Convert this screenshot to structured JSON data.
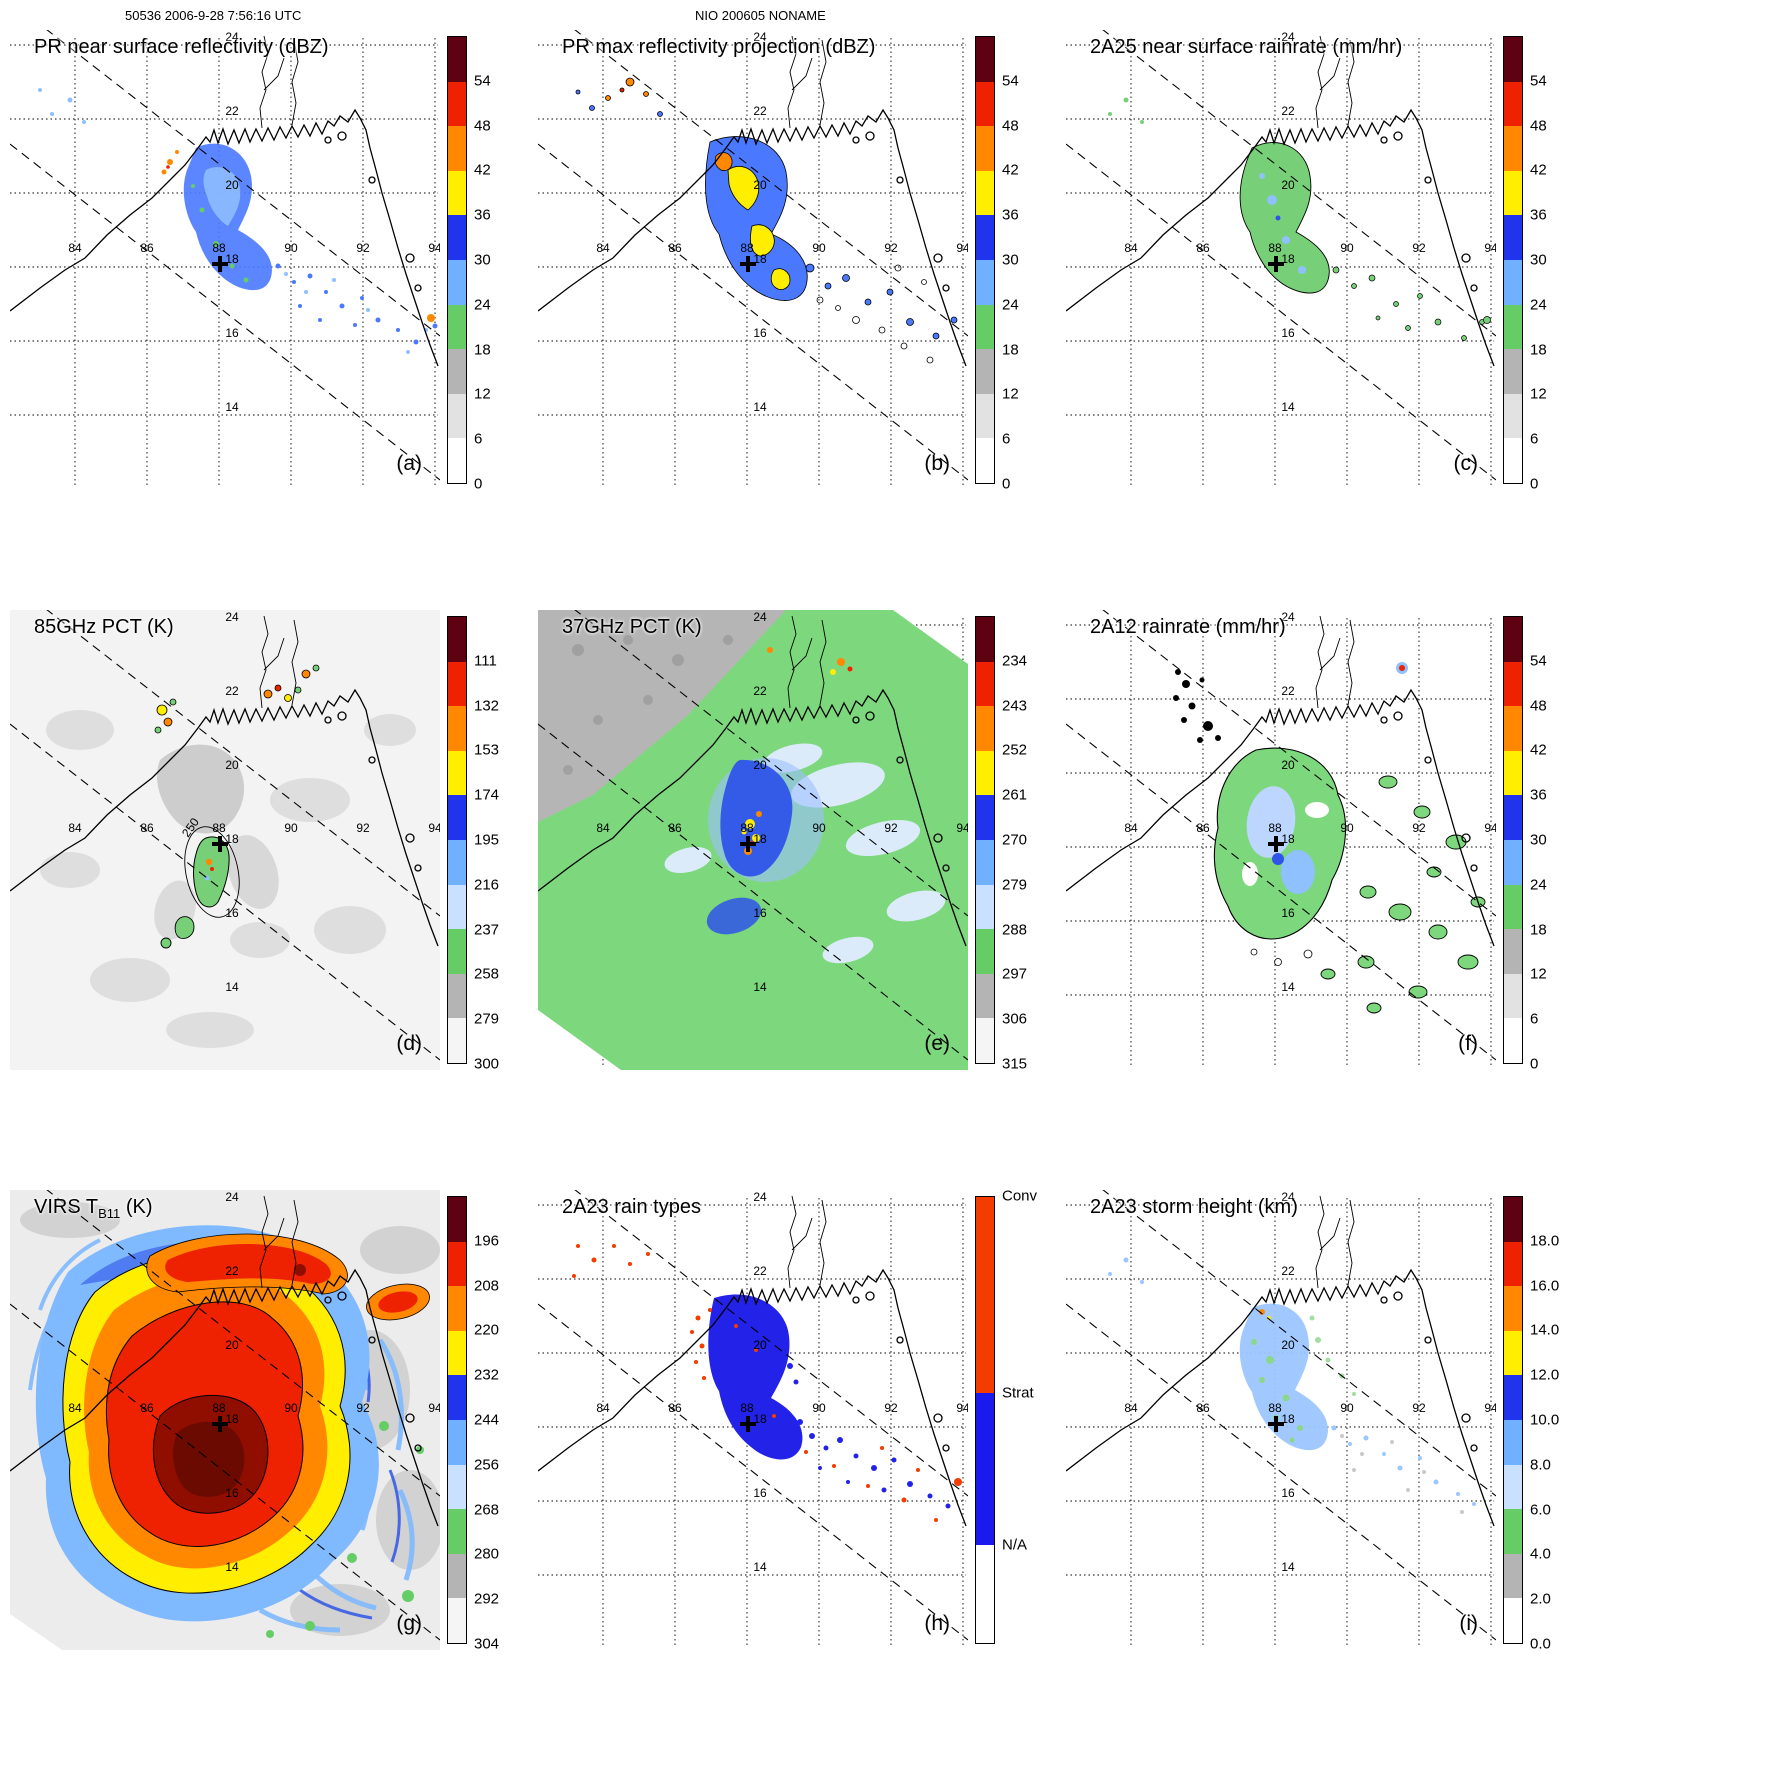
{
  "header": {
    "left": "50536 2006-9-28 7:56:16 UTC",
    "center": "NIO 200605 NONAME"
  },
  "axes": {
    "lon_labels": [
      "84",
      "86",
      "88",
      "90",
      "92",
      "94"
    ],
    "lat_labels": [
      "24",
      "22",
      "20",
      "18",
      "16",
      "14"
    ]
  },
  "palettes": {
    "dbz": [
      "#5e0211",
      "#ee2200",
      "#ff8800",
      "#ffee00",
      "#2233ee",
      "#6fb1ff",
      "#66cc66",
      "#b4b4b4",
      "#e2e2e2",
      "#ffffff"
    ],
    "pct": [
      "#5e0211",
      "#ee2200",
      "#ff8800",
      "#ffee00",
      "#2233ee",
      "#6fb1ff",
      "#c9e0ff",
      "#66cc66",
      "#b4b4b4",
      "#f5f5f5"
    ],
    "height": [
      "#5e0211",
      "#ee2200",
      "#ff8800",
      "#ffee00",
      "#2233ee",
      "#6fb1ff",
      "#c9e0ff",
      "#66cc66",
      "#b4b4b4",
      "#ffffff"
    ]
  },
  "panels": [
    {
      "id": "a",
      "letter": "(a)",
      "title": "PR near surface reflectivity (dBZ)",
      "colorbar": {
        "kind": "scale",
        "palette": "dbz",
        "ticks": [
          "54",
          "48",
          "42",
          "36",
          "30",
          "24",
          "18",
          "12",
          "6",
          "0"
        ]
      }
    },
    {
      "id": "b",
      "letter": "(b)",
      "title": "PR max reflectivity projection (dBZ)",
      "colorbar": {
        "kind": "scale",
        "palette": "dbz",
        "ticks": [
          "54",
          "48",
          "42",
          "36",
          "30",
          "24",
          "18",
          "12",
          "6",
          "0"
        ]
      }
    },
    {
      "id": "c",
      "letter": "(c)",
      "title": "2A25 near surface rainrate (mm/hr)",
      "colorbar": {
        "kind": "scale",
        "palette": "dbz",
        "ticks": [
          "54",
          "48",
          "42",
          "36",
          "30",
          "24",
          "18",
          "12",
          "6",
          "0"
        ]
      }
    },
    {
      "id": "d",
      "letter": "(d)",
      "title": "85GHz PCT (K)",
      "map_label": "250",
      "colorbar": {
        "kind": "scale",
        "palette": "pct",
        "ticks": [
          "111",
          "132",
          "153",
          "174",
          "195",
          "216",
          "237",
          "258",
          "279",
          "300"
        ]
      }
    },
    {
      "id": "e",
      "letter": "(e)",
      "title": "37GHz PCT (K)",
      "colorbar": {
        "kind": "scale",
        "palette": "pct",
        "ticks": [
          "234",
          "243",
          "252",
          "261",
          "270",
          "279",
          "288",
          "297",
          "306",
          "315"
        ]
      }
    },
    {
      "id": "f",
      "letter": "(f)",
      "title": "2A12 rainrate (mm/hr)",
      "colorbar": {
        "kind": "scale",
        "palette": "dbz",
        "ticks": [
          "54",
          "48",
          "42",
          "36",
          "30",
          "24",
          "18",
          "12",
          "6",
          "0"
        ]
      }
    },
    {
      "id": "g",
      "letter": "(g)",
      "title": "VIRS T",
      "title_sub": "B11",
      "title_post": " (K)",
      "colorbar": {
        "kind": "scale",
        "palette": "pct",
        "ticks": [
          "196",
          "208",
          "220",
          "232",
          "244",
          "256",
          "268",
          "280",
          "292",
          "304"
        ]
      }
    },
    {
      "id": "h",
      "letter": "(h)",
      "title": "2A23 rain types",
      "colorbar": {
        "kind": "cats",
        "segments": [
          {
            "label": "Conv",
            "color": "#f43b00",
            "frac": 0.44
          },
          {
            "label": "Strat",
            "color": "#1a1aee",
            "frac": 0.34
          },
          {
            "label": "N/A",
            "color": "#ffffff",
            "frac": 0.22
          }
        ]
      }
    },
    {
      "id": "i",
      "letter": "(i)",
      "title": "2A23 storm height (km)",
      "colorbar": {
        "kind": "scale",
        "palette": "height",
        "ticks": [
          "18.0",
          "16.0",
          "14.0",
          "12.0",
          "10.0",
          "8.0",
          "6.0",
          "4.0",
          "2.0",
          "0.0"
        ]
      }
    }
  ],
  "chart_data": [
    {
      "type": "heatmap",
      "panel": "(a)",
      "title": "PR near surface reflectivity (dBZ)",
      "units": "dBZ",
      "colorbar_ticks": [
        0,
        6,
        12,
        18,
        24,
        30,
        36,
        42,
        48,
        54
      ],
      "lon_ticks": [
        84,
        86,
        88,
        90,
        92,
        94
      ],
      "lat_ticks": [
        14,
        16,
        18,
        20,
        22,
        24
      ],
      "storm_center_lon_lat": [
        88.3,
        18.1
      ]
    },
    {
      "type": "heatmap",
      "panel": "(b)",
      "title": "PR max reflectivity projection (dBZ)",
      "units": "dBZ",
      "colorbar_ticks": [
        0,
        6,
        12,
        18,
        24,
        30,
        36,
        42,
        48,
        54
      ],
      "lon_ticks": [
        84,
        86,
        88,
        90,
        92,
        94
      ],
      "lat_ticks": [
        14,
        16,
        18,
        20,
        22,
        24
      ],
      "storm_center_lon_lat": [
        88.3,
        18.1
      ]
    },
    {
      "type": "heatmap",
      "panel": "(c)",
      "title": "2A25 near surface rainrate (mm/hr)",
      "units": "mm/hr",
      "colorbar_ticks": [
        0,
        6,
        12,
        18,
        24,
        30,
        36,
        42,
        48,
        54
      ],
      "lon_ticks": [
        84,
        86,
        88,
        90,
        92,
        94
      ],
      "lat_ticks": [
        14,
        16,
        18,
        20,
        22,
        24
      ],
      "storm_center_lon_lat": [
        88.3,
        18.1
      ]
    },
    {
      "type": "heatmap",
      "panel": "(d)",
      "title": "85GHz PCT (K)",
      "units": "K",
      "colorbar_ticks": [
        111,
        132,
        153,
        174,
        195,
        216,
        237,
        258,
        279,
        300
      ],
      "contour_label": 250,
      "lon_ticks": [
        84,
        86,
        88,
        90,
        92,
        94
      ],
      "lat_ticks": [
        14,
        16,
        18,
        20,
        22,
        24
      ],
      "storm_center_lon_lat": [
        88.3,
        18.1
      ]
    },
    {
      "type": "heatmap",
      "panel": "(e)",
      "title": "37GHz PCT (K)",
      "units": "K",
      "colorbar_ticks": [
        234,
        243,
        252,
        261,
        270,
        279,
        288,
        297,
        306,
        315
      ],
      "lon_ticks": [
        84,
        86,
        88,
        90,
        92,
        94
      ],
      "lat_ticks": [
        14,
        16,
        18,
        20,
        22,
        24
      ],
      "storm_center_lon_lat": [
        88.3,
        18.1
      ]
    },
    {
      "type": "heatmap",
      "panel": "(f)",
      "title": "2A12 rainrate (mm/hr)",
      "units": "mm/hr",
      "colorbar_ticks": [
        0,
        6,
        12,
        18,
        24,
        30,
        36,
        42,
        48,
        54
      ],
      "lon_ticks": [
        84,
        86,
        88,
        90,
        92,
        94
      ],
      "lat_ticks": [
        14,
        16,
        18,
        20,
        22,
        24
      ],
      "storm_center_lon_lat": [
        88.3,
        18.1
      ]
    },
    {
      "type": "heatmap",
      "panel": "(g)",
      "title": "VIRS TB11 (K)",
      "units": "K",
      "colorbar_ticks": [
        196,
        208,
        220,
        232,
        244,
        256,
        268,
        280,
        292,
        304
      ],
      "lon_ticks": [
        84,
        86,
        88,
        90,
        92,
        94
      ],
      "lat_ticks": [
        14,
        16,
        18,
        20,
        22,
        24
      ],
      "storm_center_lon_lat": [
        88.3,
        18.1
      ]
    },
    {
      "type": "heatmap",
      "panel": "(h)",
      "title": "2A23 rain types",
      "units": "category",
      "categories": [
        "Conv",
        "Strat",
        "N/A"
      ],
      "lon_ticks": [
        84,
        86,
        88,
        90,
        92,
        94
      ],
      "lat_ticks": [
        14,
        16,
        18,
        20,
        22,
        24
      ],
      "storm_center_lon_lat": [
        88.3,
        18.1
      ]
    },
    {
      "type": "heatmap",
      "panel": "(i)",
      "title": "2A23 storm height (km)",
      "units": "km",
      "colorbar_ticks": [
        0,
        2,
        4,
        6,
        8,
        10,
        12,
        14,
        16,
        18
      ],
      "lon_ticks": [
        84,
        86,
        88,
        90,
        92,
        94
      ],
      "lat_ticks": [
        14,
        16,
        18,
        20,
        22,
        24
      ],
      "storm_center_lon_lat": [
        88.3,
        18.1
      ]
    }
  ]
}
